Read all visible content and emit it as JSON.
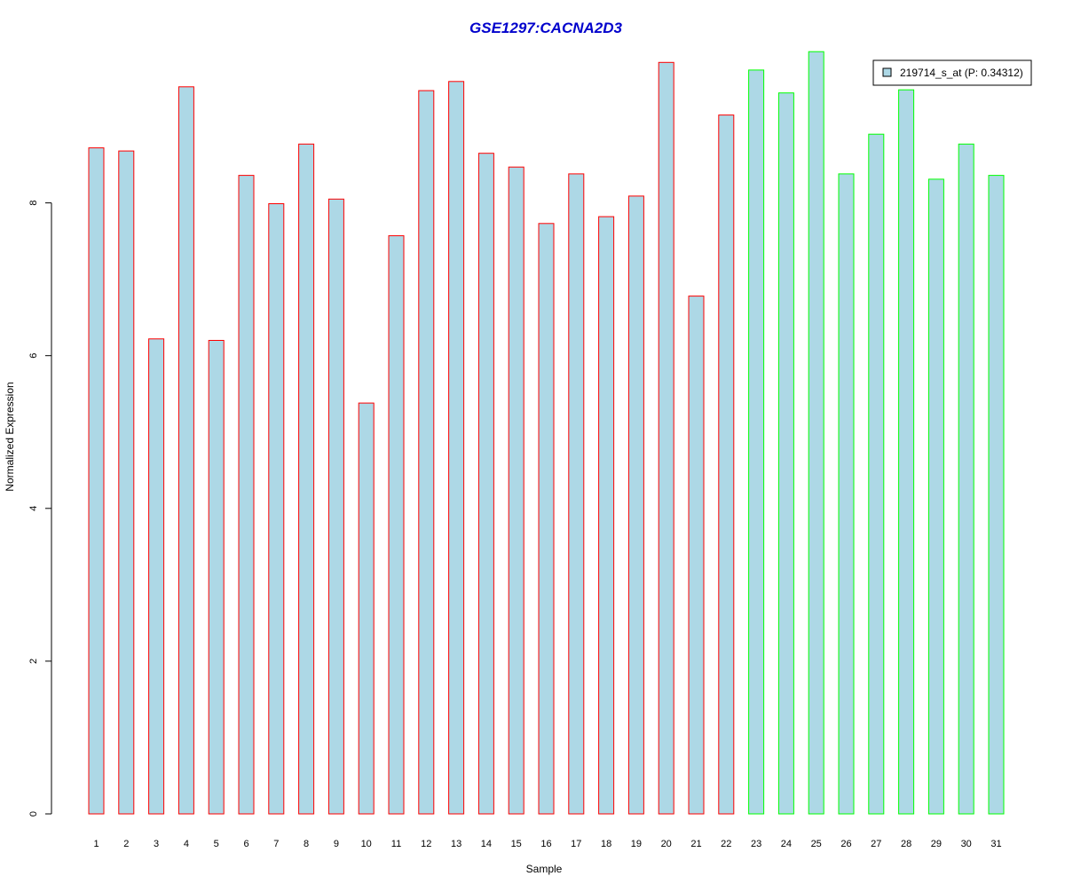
{
  "chart_data": {
    "type": "bar",
    "title": "GSE1297:CACNA2D3",
    "xlabel": "Sample",
    "ylabel": "Normalized Expression",
    "ylim": [
      0,
      10
    ],
    "yticks": [
      "0",
      "2",
      "4",
      "6",
      "8"
    ],
    "categories": [
      "1",
      "2",
      "3",
      "4",
      "5",
      "6",
      "7",
      "8",
      "9",
      "10",
      "11",
      "12",
      "13",
      "14",
      "15",
      "16",
      "17",
      "18",
      "19",
      "20",
      "21",
      "22",
      "23",
      "24",
      "25",
      "26",
      "27",
      "28",
      "29",
      "30",
      "31"
    ],
    "series": [
      {
        "name": "219714_s_at (P: 0.34312)",
        "values": [
          8.72,
          8.68,
          6.22,
          9.52,
          6.2,
          8.36,
          7.99,
          8.77,
          8.05,
          5.38,
          7.57,
          9.47,
          9.59,
          8.65,
          8.47,
          7.73,
          8.38,
          7.82,
          8.09,
          9.84,
          6.78,
          9.15,
          9.74,
          9.44,
          9.98,
          8.38,
          8.9,
          9.48,
          8.31,
          8.77,
          8.36
        ]
      }
    ],
    "bar_fill": "#add8e6",
    "group_colors": {
      "group1": "#ff0000",
      "group2": "#00ff00"
    },
    "bar_groups": [
      "group1",
      "group1",
      "group1",
      "group1",
      "group1",
      "group1",
      "group1",
      "group1",
      "group1",
      "group1",
      "group1",
      "group1",
      "group1",
      "group1",
      "group1",
      "group1",
      "group1",
      "group1",
      "group1",
      "group1",
      "group1",
      "group1",
      "group2",
      "group2",
      "group2",
      "group2",
      "group2",
      "group2",
      "group2",
      "group2",
      "group2"
    ],
    "title_color": "#0000cc",
    "grid": false,
    "legend_position": "top-right"
  }
}
